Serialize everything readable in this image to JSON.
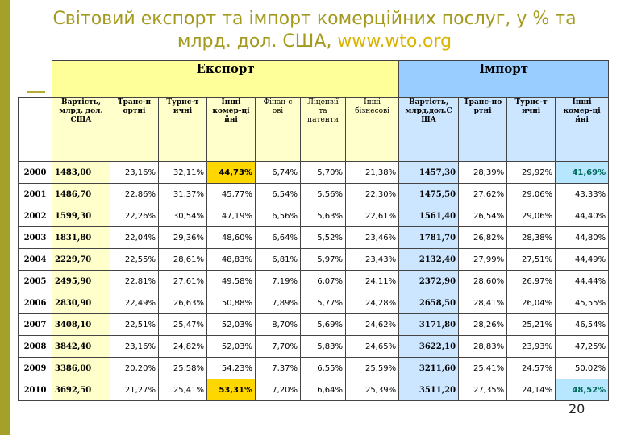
{
  "title_main": "Світовий експорт та імпорт комерційних послуг, у % та млрд. дол. США,",
  "title_url": "www.wto.org",
  "page_number": "20",
  "groups": {
    "export": "Експорт",
    "import": "Імпорт"
  },
  "subheaders": [
    "Вартість, млрд. дол. США",
    "Транс-п ортні",
    "Турис-т ичні",
    "Інші комер-ці йні",
    "Фінан-с ові",
    "Ліцензії та патенти",
    "Інші бізнесові",
    "Вартість, млрд.дол.С ША",
    "Транс-по ртні",
    "Турис-т ичні",
    "Інші комер-ці йні"
  ],
  "colors": {
    "export_header": "#ffff99",
    "import_header": "#99ccff",
    "highlight_yellow": "#ffd700",
    "highlight_blue": "#b7e6ff",
    "title": "#a39a1e",
    "url": "#d9b400"
  },
  "rows": [
    {
      "year": "2000",
      "cells": [
        "1483,00",
        "23,16%",
        "32,11%",
        "44,73%",
        "6,74%",
        "5,70%",
        "21,38%",
        "1457,30",
        "28,39%",
        "29,92%",
        "41,69%"
      ]
    },
    {
      "year": "2001",
      "cells": [
        "1486,70",
        "22,86%",
        "31,37%",
        "45,77%",
        "6,54%",
        "5,56%",
        "22,30%",
        "1475,50",
        "27,62%",
        "29,06%",
        "43,33%"
      ]
    },
    {
      "year": "2002",
      "cells": [
        "1599,30",
        "22,26%",
        "30,54%",
        "47,19%",
        "6,56%",
        "5,63%",
        "22,61%",
        "1561,40",
        "26,54%",
        "29,06%",
        "44,40%"
      ]
    },
    {
      "year": "2003",
      "cells": [
        "1831,80",
        "22,04%",
        "29,36%",
        "48,60%",
        "6,64%",
        "5,52%",
        "23,46%",
        "1781,70",
        "26,82%",
        "28,38%",
        "44,80%"
      ]
    },
    {
      "year": "2004",
      "cells": [
        "2229,70",
        "22,55%",
        "28,61%",
        "48,83%",
        "6,81%",
        "5,97%",
        "23,43%",
        "2132,40",
        "27,99%",
        "27,51%",
        "44,49%"
      ]
    },
    {
      "year": "2005",
      "cells": [
        "2495,90",
        "22,81%",
        "27,61%",
        "49,58%",
        "7,19%",
        "6,07%",
        "24,11%",
        "2372,90",
        "28,60%",
        "26,97%",
        "44,44%"
      ]
    },
    {
      "year": "2006",
      "cells": [
        "2830,90",
        "22,49%",
        "26,63%",
        "50,88%",
        "7,89%",
        "5,77%",
        "24,28%",
        "2658,50",
        "28,41%",
        "26,04%",
        "45,55%"
      ]
    },
    {
      "year": "2007",
      "cells": [
        "3408,10",
        "22,51%",
        "25,47%",
        "52,03%",
        "8,70%",
        "5,69%",
        "24,62%",
        "3171,80",
        "28,26%",
        "25,21%",
        "46,54%"
      ]
    },
    {
      "year": "2008",
      "cells": [
        "3842,40",
        "23,16%",
        "24,82%",
        "52,03%",
        "7,70%",
        "5,83%",
        "24,65%",
        "3622,10",
        "28,83%",
        "23,93%",
        "47,25%"
      ]
    },
    {
      "year": "2009",
      "cells": [
        "3386,00",
        "20,20%",
        "25,58%",
        "54,23%",
        "7,37%",
        "6,55%",
        "25,59%",
        "3211,60",
        "25,41%",
        "24,57%",
        "50,02%"
      ]
    },
    {
      "year": "2010",
      "cells": [
        "3692,50",
        "21,27%",
        "25,41%",
        "53,31%",
        "7,20%",
        "6,64%",
        "25,39%",
        "3511,20",
        "27,35%",
        "24,14%",
        "48,52%"
      ]
    }
  ]
}
